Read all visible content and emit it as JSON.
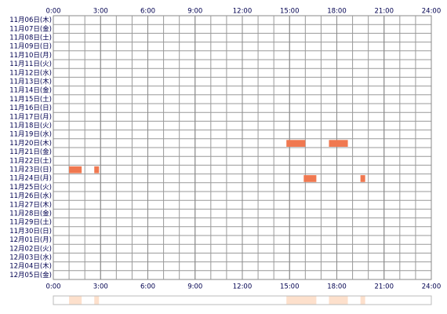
{
  "chart_data": {
    "type": "timeline",
    "categories": [
      "11月06日(木)",
      "11月07日(金)",
      "11月08日(土)",
      "11月09日(日)",
      "11月10日(月)",
      "11月11日(火)",
      "11月12日(水)",
      "11月13日(木)",
      "11月14日(金)",
      "11月15日(土)",
      "11月16日(日)",
      "11月17日(月)",
      "11月18日(火)",
      "11月19日(水)",
      "11月20日(木)",
      "11月21日(金)",
      "11月22日(土)",
      "11月23日(日)",
      "11月24日(月)",
      "11月25日(火)",
      "11月26日(水)",
      "11月27日(木)",
      "11月28日(金)",
      "11月29日(土)",
      "11月30日(日)",
      "12月01日(月)",
      "12月02日(火)",
      "12月03日(水)",
      "12月04日(木)",
      "12月05日(金)"
    ],
    "intervals": [
      [],
      [],
      [],
      [],
      [],
      [],
      [],
      [],
      [],
      [],
      [],
      [],
      [],
      [],
      [
        [
          14.8,
          16.0
        ],
        [
          17.5,
          18.7
        ]
      ],
      [],
      [],
      [
        [
          1.0,
          1.8
        ],
        [
          2.6,
          2.9
        ]
      ],
      [
        [
          15.9,
          16.7
        ],
        [
          19.5,
          19.8
        ]
      ],
      [],
      [],
      [],
      [],
      [],
      [],
      [],
      [],
      [],
      [],
      []
    ],
    "xlim": [
      0,
      24
    ],
    "xticks": [
      {
        "value": 0,
        "label": "0:00"
      },
      {
        "value": 3,
        "label": "3:00"
      },
      {
        "value": 6,
        "label": "6:00"
      },
      {
        "value": 9,
        "label": "9:00"
      },
      {
        "value": 12,
        "label": "12:00"
      },
      {
        "value": 15,
        "label": "15:00"
      },
      {
        "value": 18,
        "label": "18:00"
      },
      {
        "value": 21,
        "label": "21:00"
      },
      {
        "value": 24,
        "label": "24:00"
      }
    ],
    "color": "#f07850",
    "summary_color": "#fde0cc",
    "grid": true
  }
}
